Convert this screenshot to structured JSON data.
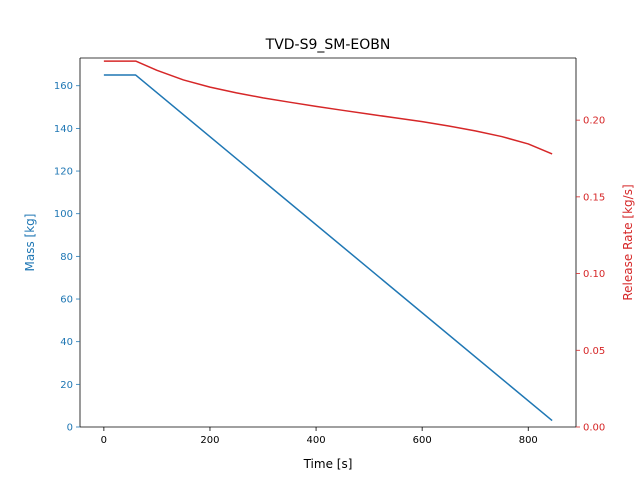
{
  "chart_data": {
    "type": "line",
    "title": "TVD-S9_SM-EOBN",
    "xlabel": "Time [s]",
    "xlim": [
      -45,
      890
    ],
    "x_ticks": [
      0,
      200,
      400,
      600,
      800
    ],
    "grid": false,
    "legend": "none",
    "y_left": {
      "label": "Mass [kg]",
      "color": "#1f77b4",
      "lim": [
        0,
        173
      ],
      "ticks": [
        0,
        20,
        40,
        60,
        80,
        100,
        120,
        140,
        160
      ]
    },
    "y_right": {
      "label": "Release Rate [kg/s]",
      "color": "#d62728",
      "lim": [
        0,
        0.2405
      ],
      "ticks": [
        0.0,
        0.05,
        0.1,
        0.15,
        0.2
      ],
      "tick_labels": [
        "0.00",
        "0.05",
        "0.10",
        "0.15",
        "0.20"
      ]
    },
    "series": [
      {
        "axis": "left",
        "color": "#1f77b4",
        "points": [
          [
            0,
            165
          ],
          [
            60,
            165
          ],
          [
            845,
            3
          ]
        ]
      },
      {
        "axis": "right",
        "color": "#d62728",
        "points": [
          [
            0,
            0.2385
          ],
          [
            60,
            0.2385
          ],
          [
            100,
            0.2325
          ],
          [
            150,
            0.2262
          ],
          [
            200,
            0.2215
          ],
          [
            250,
            0.2178
          ],
          [
            300,
            0.2145
          ],
          [
            350,
            0.2117
          ],
          [
            400,
            0.209
          ],
          [
            450,
            0.2064
          ],
          [
            500,
            0.2039
          ],
          [
            550,
            0.2015
          ],
          [
            600,
            0.199
          ],
          [
            650,
            0.1962
          ],
          [
            700,
            0.193
          ],
          [
            750,
            0.1893
          ],
          [
            800,
            0.1845
          ],
          [
            845,
            0.178
          ]
        ]
      }
    ]
  }
}
